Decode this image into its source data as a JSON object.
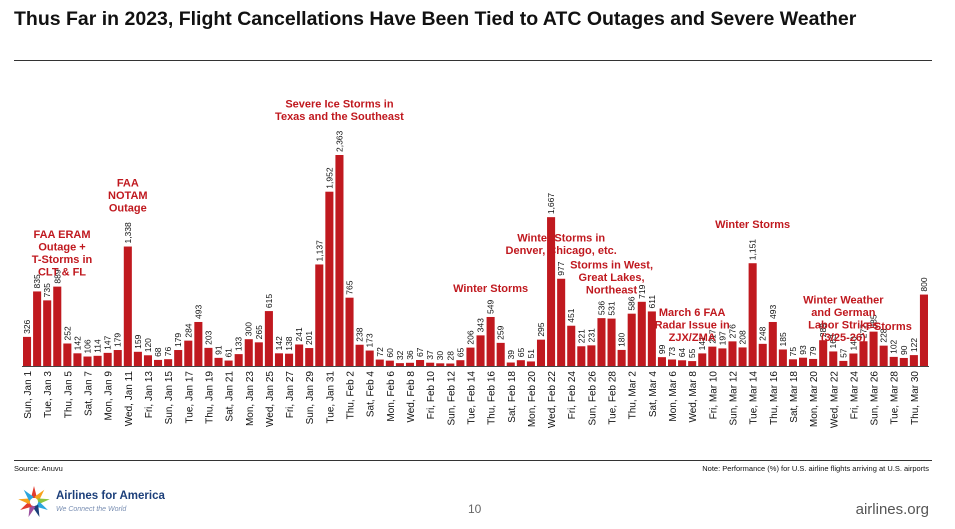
{
  "title": "Thus Far in 2023, Flight Cancellations Have Been Tied to ATC Outages and Severe Weather",
  "source": "Source: Anuvu",
  "note": "Note: Performance (%) for U.S. airline flights arriving at U.S. airports",
  "page_number": "10",
  "footer_site": "airlines.org",
  "logo": {
    "name": "Airlines for America",
    "tagline": "We Connect the World"
  },
  "colors": {
    "bar": "#c0191f",
    "annotation": "#c0191f",
    "text": "#111111"
  },
  "chart_data": {
    "type": "bar",
    "categories": [
      "Sun, Jan 1",
      "Mon, Jan 2",
      "Tue, Jan 3",
      "Wed, Jan 4",
      "Thu, Jan 5",
      "Fri, Jan 6",
      "Sat, Jan 7",
      "Sun, Jan 8",
      "Mon, Jan 9",
      "Tue, Jan 10",
      "Wed, Jan 11",
      "Thu, Jan 12",
      "Fri, Jan 13",
      "Sat, Jan 14",
      "Sun, Jan 15",
      "Mon, Jan 16",
      "Tue, Jan 17",
      "Wed, Jan 18",
      "Thu, Jan 19",
      "Fri, Jan 20",
      "Sat, Jan 21",
      "Sun, Jan 22",
      "Mon, Jan 23",
      "Tue, Jan 24",
      "Wed, Jan 25",
      "Thu, Jan 26",
      "Fri, Jan 27",
      "Sat, Jan 28",
      "Sun, Jan 29",
      "Mon, Jan 30",
      "Tue, Jan 31",
      "Wed, Feb 1",
      "Thu, Feb 2",
      "Fri, Feb 3",
      "Sat, Feb 4",
      "Sun, Feb 5",
      "Mon, Feb 6",
      "Tue, Feb 7",
      "Wed, Feb 8",
      "Thu, Feb 9",
      "Fri, Feb 10",
      "Sat, Feb 11",
      "Sun, Feb 12",
      "Mon, Feb 13",
      "Tue, Feb 14",
      "Wed, Feb 15",
      "Thu, Feb 16",
      "Fri, Feb 17",
      "Sat, Feb 18",
      "Sun, Feb 19",
      "Mon, Feb 20",
      "Tue, Feb 21",
      "Wed, Feb 22",
      "Thu, Feb 23",
      "Fri, Feb 24",
      "Sat, Feb 25",
      "Sun, Feb 26",
      "Mon, Feb 27",
      "Tue, Feb 28",
      "Wed, Mar 1",
      "Thu, Mar 2",
      "Fri, Mar 3",
      "Sat, Mar 4",
      "Sun, Mar 5",
      "Mon, Mar 6",
      "Tue, Mar 7",
      "Wed, Mar 8",
      "Thu, Mar 9",
      "Fri, Mar 10",
      "Sat, Mar 11",
      "Sun, Mar 12",
      "Mon, Mar 13",
      "Tue, Mar 14",
      "Wed, Mar 15",
      "Thu, Mar 16",
      "Fri, Mar 17",
      "Sat, Mar 18",
      "Sun, Mar 19",
      "Mon, Mar 20",
      "Tue, Mar 21",
      "Wed, Mar 22",
      "Thu, Mar 23",
      "Fri, Mar 24",
      "Sat, Mar 25",
      "Sun, Mar 26",
      "Mon, Mar 27",
      "Tue, Mar 28",
      "Wed, Mar 29",
      "Thu, Mar 30",
      "Fri, Mar 31"
    ],
    "values": [
      326,
      835,
      735,
      889,
      252,
      142,
      106,
      114,
      147,
      179,
      1338,
      159,
      120,
      68,
      76,
      179,
      284,
      493,
      203,
      91,
      61,
      133,
      300,
      265,
      615,
      142,
      138,
      241,
      201,
      1137,
      1952,
      2363,
      765,
      238,
      173,
      72,
      60,
      32,
      36,
      67,
      37,
      30,
      28,
      65,
      206,
      343,
      549,
      259,
      39,
      65,
      51,
      295,
      1667,
      977,
      451,
      221,
      231,
      536,
      531,
      180,
      586,
      719,
      611,
      99,
      73,
      64,
      55,
      141,
      217,
      197,
      276,
      208,
      1151,
      248,
      493,
      185,
      75,
      93,
      79,
      289,
      163,
      57,
      140,
      277,
      385,
      228,
      102,
      90,
      122,
      800
    ],
    "shown_tick_labels": [
      "Sun, Jan 1",
      "Tue, Jan 3",
      "Thu, Jan 5",
      "Sat, Jan 7",
      "Mon, Jan 9",
      "Wed, Jan 11",
      "Fri, Jan 13",
      "Sun, Jan 15",
      "Tue, Jan 17",
      "Thu, Jan 19",
      "Sat, Jan 21",
      "Mon, Jan 23",
      "Wed, Jan 25",
      "Fri, Jan 27",
      "Sun, Jan 29",
      "Tue, Jan 31",
      "Thu, Feb 2",
      "Sat, Feb 4",
      "Mon, Feb 6",
      "Wed, Feb 8",
      "Fri, Feb 10",
      "Sun, Feb 12",
      "Tue, Feb 14",
      "Thu, Feb 16",
      "Sat, Feb 18",
      "Mon, Feb 20",
      "Wed, Feb 22",
      "Fri, Feb 24",
      "Sun, Feb 26",
      "Tue, Feb 28",
      "Thu, Mar 2",
      "Sat, Mar 4",
      "Mon, Mar 6",
      "Wed, Mar 8",
      "Fri, Mar 10",
      "Sun, Mar 12",
      "Tue, Mar 14",
      "Thu, Mar 16",
      "Sat, Mar 18",
      "Mon, Mar 20",
      "Wed, Mar 22",
      "Fri, Mar 24",
      "Sun, Mar 26",
      "Tue, Mar 28",
      "Thu, Mar 30"
    ],
    "ylim": [
      0,
      2363
    ],
    "grid": false,
    "annotations": [
      {
        "index": 2,
        "lines": [
          "FAA ERAM",
          "Outage +",
          "T-Storms in",
          "CLT & FL"
        ]
      },
      {
        "index": 10,
        "lines": [
          "FAA",
          "NOTAM",
          "Outage"
        ]
      },
      {
        "index": 31,
        "lines": [
          "Severe Ice Storms in",
          "Texas and the Southeast"
        ]
      },
      {
        "index": 46,
        "lines": [
          "Winter Storms"
        ]
      },
      {
        "index": 53,
        "lines": [
          "Winter Storms in",
          "Denver, Chicago, etc."
        ]
      },
      {
        "index": 58,
        "lines": [
          "Storms in West,",
          "Great Lakes,",
          "Northeast"
        ]
      },
      {
        "index": 66,
        "lines": [
          "March 6 FAA",
          "Radar Issue in",
          "ZJX/ZMA"
        ]
      },
      {
        "index": 72,
        "lines": [
          "Winter Storms"
        ]
      },
      {
        "index": 81,
        "lines": [
          "Winter Weather",
          "and German",
          "Labor Strikes",
          "(3/25-26)"
        ]
      },
      {
        "index": 88,
        "lines": [
          "T-Storms"
        ]
      }
    ]
  }
}
